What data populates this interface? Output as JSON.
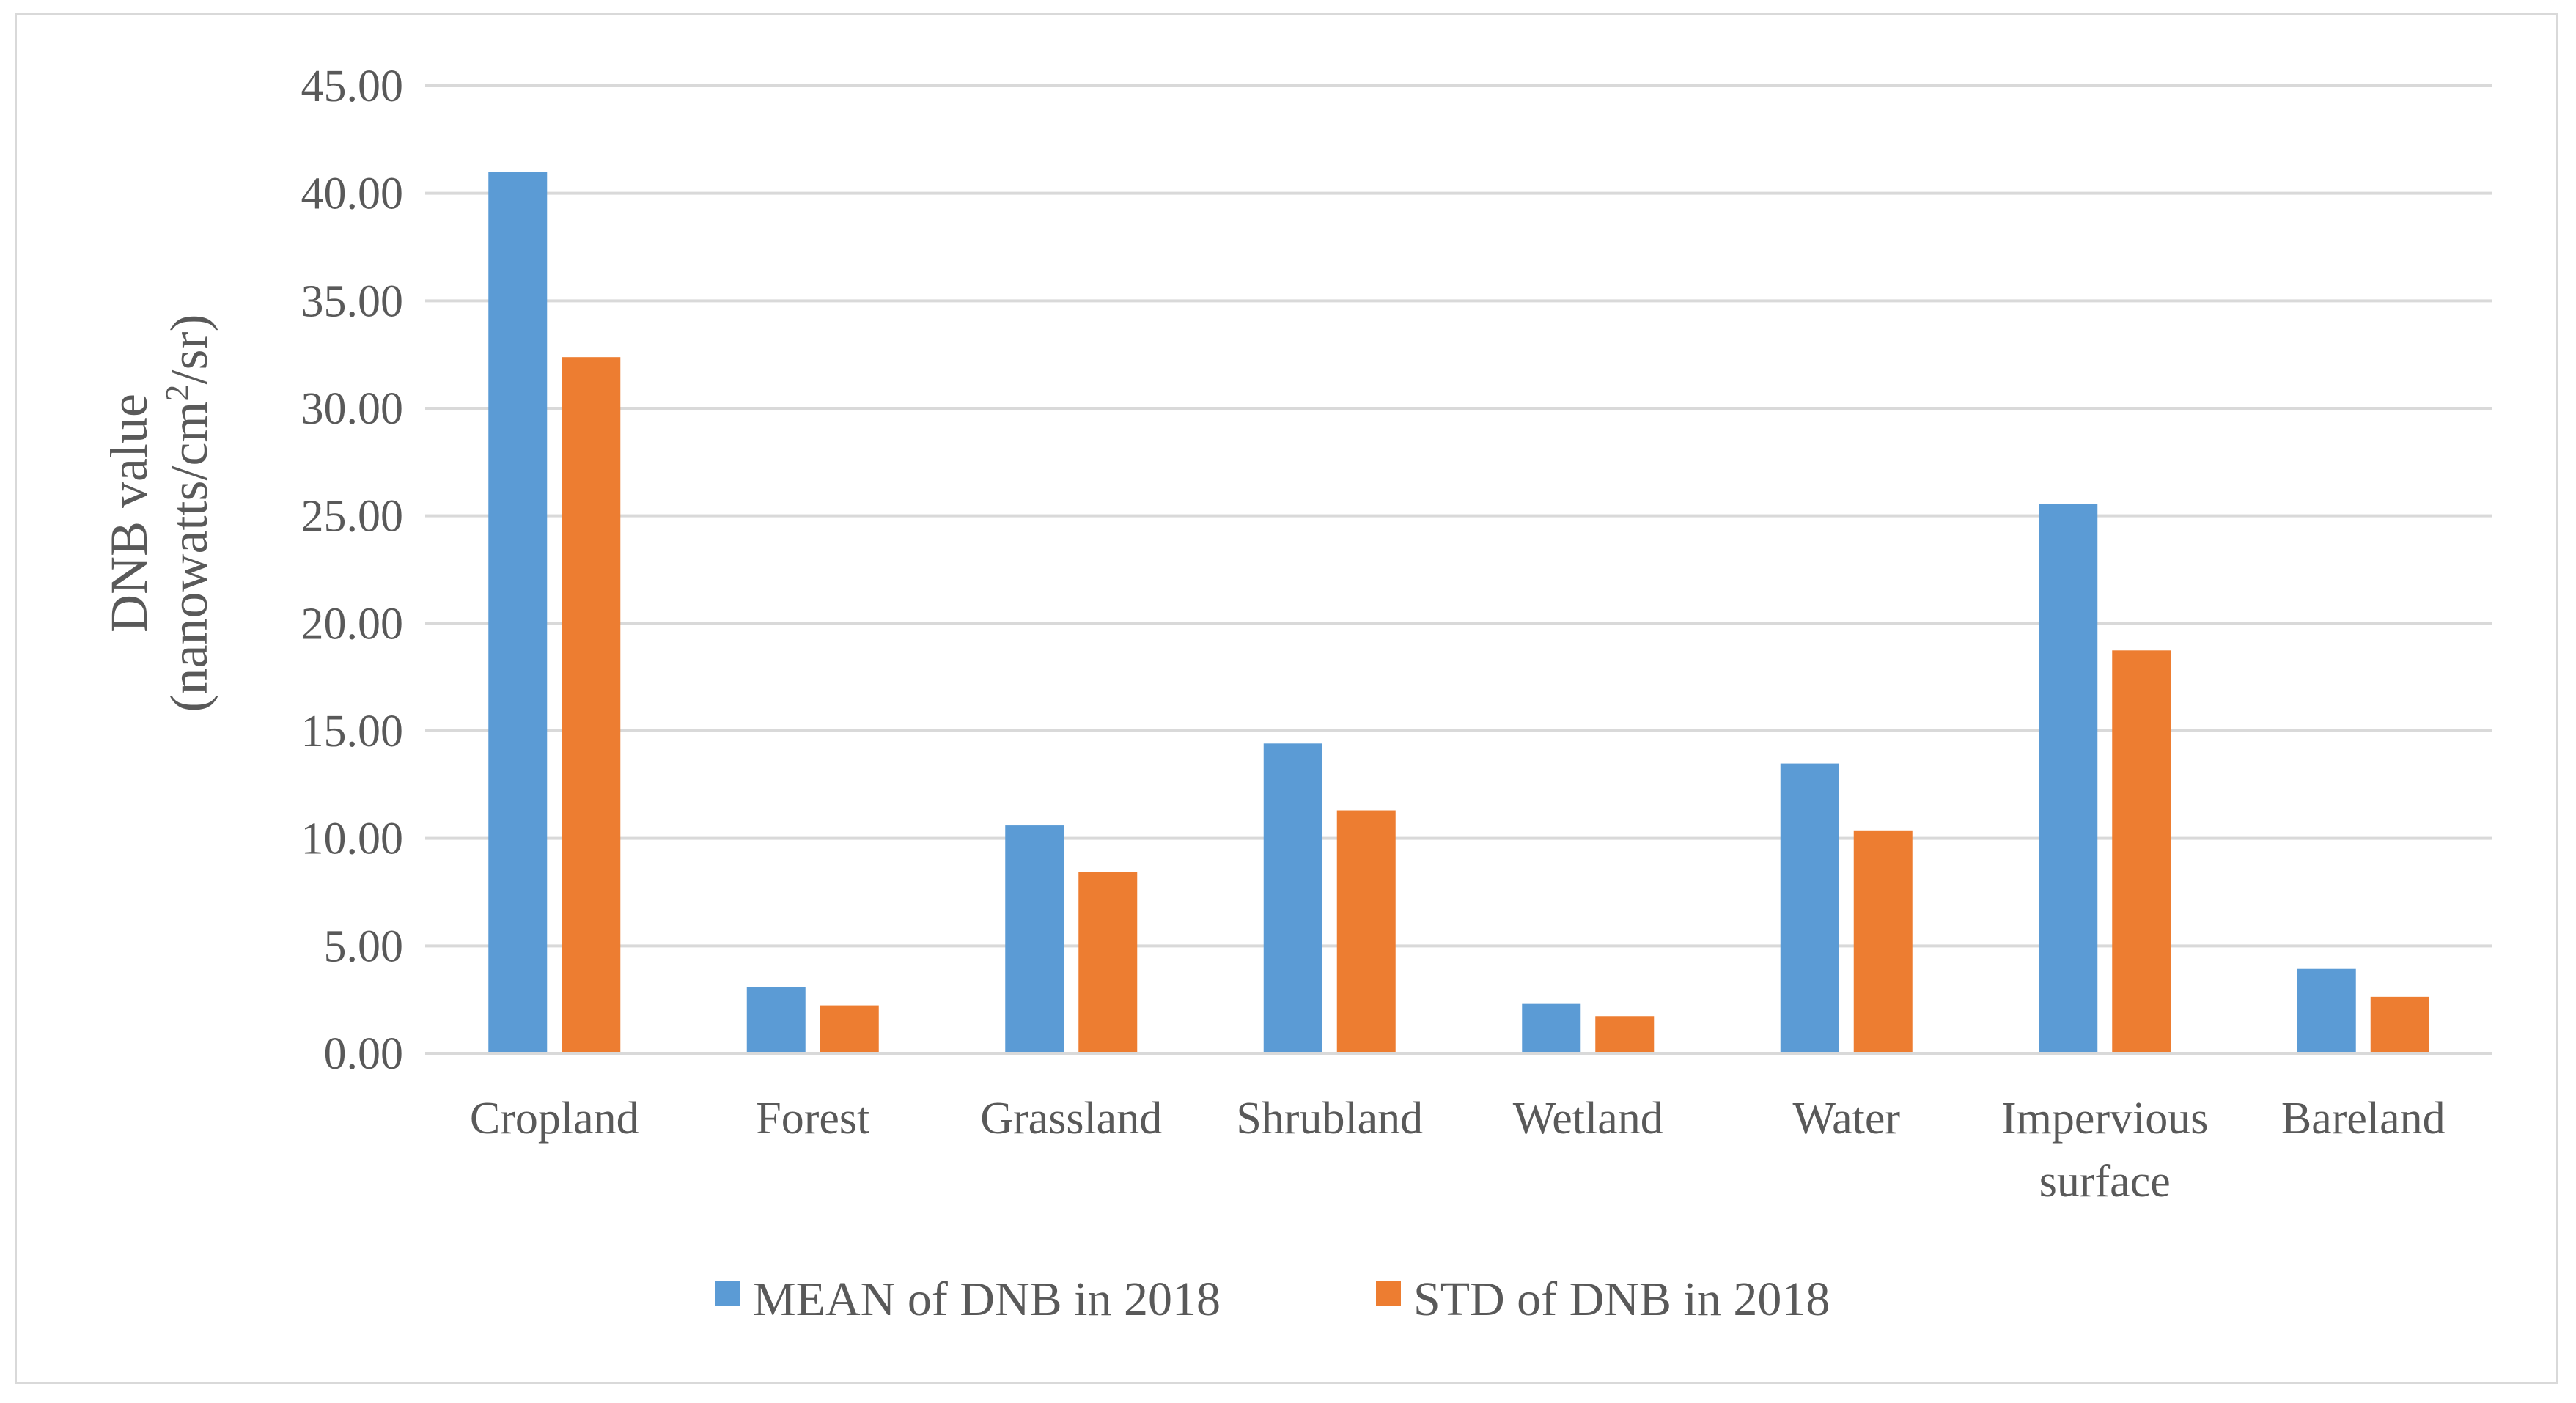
{
  "chart_data": {
    "type": "bar",
    "categories": [
      "Cropland",
      "Forest",
      "Grassland",
      "Shrubland",
      "Wetland",
      "Water",
      "Impervious surface",
      "Bareland"
    ],
    "category_lines": [
      [
        "Cropland"
      ],
      [
        "Forest"
      ],
      [
        "Grassland"
      ],
      [
        "Shrubland"
      ],
      [
        "Wetland"
      ],
      [
        "Water"
      ],
      [
        "Impervious",
        "surface"
      ],
      [
        "Bareland"
      ]
    ],
    "series": [
      {
        "name": "MEAN of DNB in 2018",
        "color": "#5b9bd5",
        "values": [
          40.98,
          3.08,
          10.6,
          14.41,
          2.33,
          13.48,
          25.56,
          3.93
        ]
      },
      {
        "name": "STD of DNB in 2018",
        "color": "#ed7d31",
        "values": [
          32.38,
          2.23,
          8.43,
          11.3,
          1.73,
          10.37,
          18.74,
          2.63
        ]
      }
    ],
    "title": "",
    "xlabel": "",
    "ylabel_line1": "DNB value",
    "ylabel_line2_before_sup": "(nanowatts/cm",
    "ylabel_sup": "2",
    "ylabel_line2_after_sup": "/sr)",
    "ylim": [
      0,
      45
    ],
    "yticks": [
      "0.00",
      "5.00",
      "10.00",
      "15.00",
      "20.00",
      "25.00",
      "30.00",
      "35.00",
      "40.00",
      "45.00"
    ],
    "grid": true,
    "legend_position": "bottom"
  }
}
